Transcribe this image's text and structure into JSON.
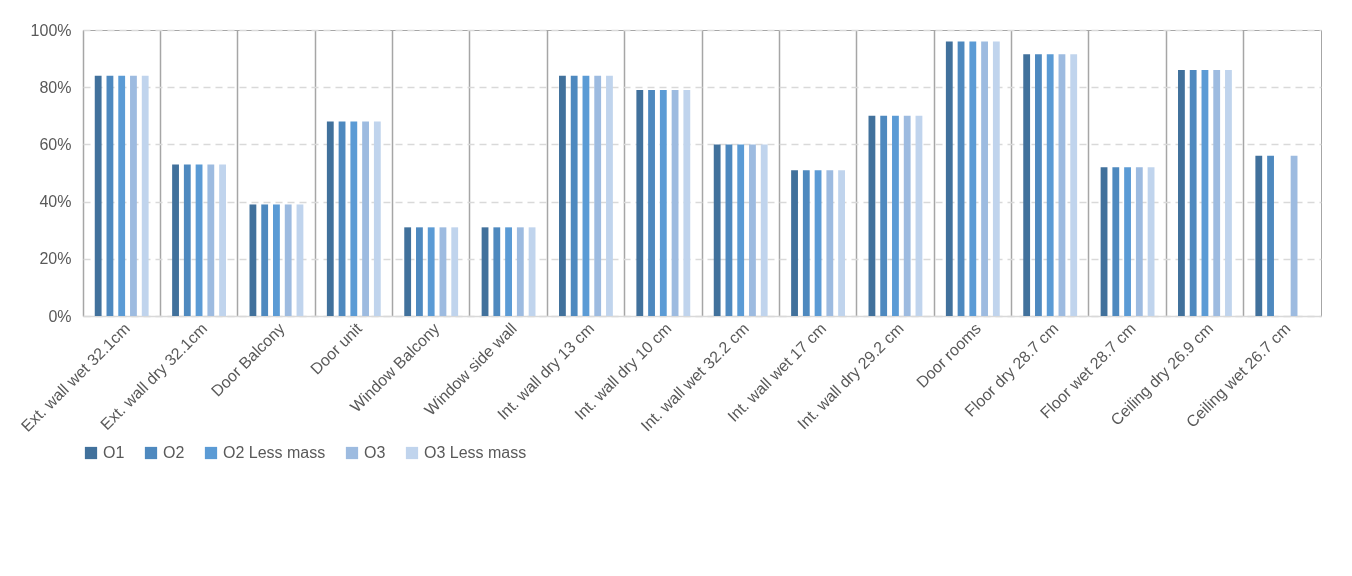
{
  "chart_data": {
    "type": "bar",
    "categories": [
      "Ext. wall wet 32.1cm",
      "Ext. wall dry 32.1cm",
      "Door Balcony",
      "Door unit",
      "Window Balcony",
      "Window side wall",
      "Int. wall dry 13 cm",
      "Int. wall dry 10 cm",
      "Int. wall wet 32.2 cm",
      "Int. wall wet 17 cm",
      "Int. wall dry 29.2 cm",
      "Door rooms",
      "Floor dry 28.7 cm",
      "Floor wet 28.7 cm",
      "Ceiling dry 26.9 cm",
      "Ceiling wet 26.7 cm"
    ],
    "series": [
      {
        "name": "O1",
        "color": "#41719c",
        "values": [
          84,
          53,
          39,
          68,
          31,
          31,
          84,
          79,
          60,
          51,
          70,
          96,
          91.5,
          52,
          86,
          56
        ]
      },
      {
        "name": "O2",
        "color": "#4e89bf",
        "values": [
          84,
          53,
          39,
          68,
          31,
          31,
          84,
          79,
          60,
          51,
          70,
          96,
          91.5,
          52,
          86,
          56
        ]
      },
      {
        "name": "O2 Less mass",
        "color": "#5b9bd5",
        "values": [
          84,
          53,
          39,
          68,
          31,
          31,
          84,
          79,
          60,
          51,
          70,
          96,
          91.5,
          52,
          86,
          null
        ]
      },
      {
        "name": "O3",
        "color": "#9dbbe0",
        "values": [
          84,
          53,
          39,
          68,
          31,
          31,
          84,
          79,
          60,
          51,
          70,
          96,
          91.5,
          52,
          86,
          56
        ]
      },
      {
        "name": "O3 Less mass",
        "color": "#c0d4ed",
        "values": [
          84,
          53,
          39,
          68,
          31,
          31,
          84,
          79,
          60,
          51,
          70,
          96,
          91.5,
          52,
          86,
          null
        ]
      }
    ],
    "ylim": [
      0,
      100
    ],
    "yticks": [
      {
        "value": 0,
        "label": "0%"
      },
      {
        "value": 20,
        "label": "20%"
      },
      {
        "value": 40,
        "label": "40%"
      },
      {
        "value": 60,
        "label": "60%"
      },
      {
        "value": 80,
        "label": "80%"
      },
      {
        "value": 100,
        "label": "100%"
      }
    ],
    "grid": true,
    "legend": "bottom"
  }
}
